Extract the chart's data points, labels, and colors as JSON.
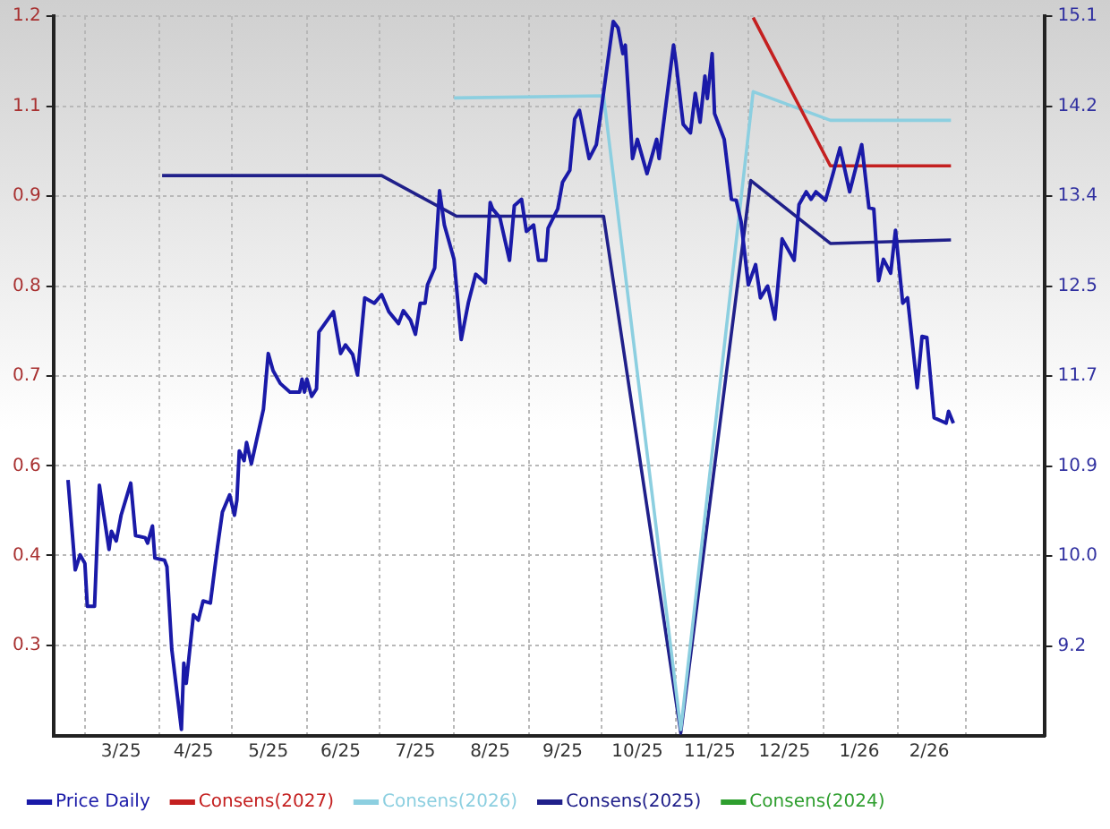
{
  "chart_data": {
    "type": "line",
    "xlim": [
      "2025-02-16",
      "2026-04-03"
    ],
    "xticks": [
      {
        "value": "2025-03-01",
        "label": null
      },
      {
        "value": "2025-03-16",
        "label": "3/25"
      },
      {
        "value": "2025-04-01",
        "label": null
      },
      {
        "value": "2025-04-15",
        "label": "4/25"
      },
      {
        "value": "2025-05-01",
        "label": null
      },
      {
        "value": "2025-05-16",
        "label": "5/25"
      },
      {
        "value": "2025-06-01",
        "label": null
      },
      {
        "value": "2025-06-15",
        "label": "6/25"
      },
      {
        "value": "2025-07-01",
        "label": null
      },
      {
        "value": "2025-07-16",
        "label": "7/25"
      },
      {
        "value": "2025-08-01",
        "label": null
      },
      {
        "value": "2025-08-16",
        "label": "8/25"
      },
      {
        "value": "2025-09-01",
        "label": null
      },
      {
        "value": "2025-09-15",
        "label": "9/25"
      },
      {
        "value": "2025-10-01",
        "label": null
      },
      {
        "value": "2025-10-16",
        "label": "10/25"
      },
      {
        "value": "2025-11-01",
        "label": null
      },
      {
        "value": "2025-11-15",
        "label": "11/25"
      },
      {
        "value": "2025-12-01",
        "label": null
      },
      {
        "value": "2025-12-16",
        "label": "12/25"
      },
      {
        "value": "2026-01-01",
        "label": null
      },
      {
        "value": "2026-01-16",
        "label": "1/26"
      },
      {
        "value": "2026-02-01",
        "label": null
      },
      {
        "value": "2026-02-14",
        "label": "2/26"
      },
      {
        "value": "2026-03-01",
        "label": null
      }
    ],
    "ylim": [
      0.171,
      1.2
    ],
    "yticks": [
      1.2,
      {
        "value": 1.071,
        "label": "1.1"
      },
      {
        "value": 0.943,
        "label": "0.9"
      },
      {
        "value": 0.814,
        "label": "0.8"
      },
      {
        "value": 0.686,
        "label": "0.7"
      },
      {
        "value": 0.557,
        "label": "0.6"
      },
      {
        "value": 0.429,
        "label": "0.4"
      },
      0.3
    ],
    "y2lim": [
      8.33,
      15.05
    ],
    "y2ticks": [
      {
        "value": 15.05,
        "label": "15.1"
      },
      {
        "value": 14.21,
        "label": "14.2"
      },
      {
        "value": 13.37,
        "label": "13.4"
      },
      {
        "value": 12.53,
        "label": "12.5"
      },
      {
        "value": 11.69,
        "label": "11.7"
      },
      {
        "value": 10.85,
        "label": "10.9"
      },
      {
        "value": 10.01,
        "label": "10.0"
      },
      {
        "value": 9.17,
        "label": "9.2"
      }
    ],
    "grid": true,
    "legend": "bottom left",
    "marker": "none",
    "line_style": "solid",
    "series": [
      {
        "name": "Price Daily",
        "color": "#1a1aa8",
        "axis": "y2",
        "x": [
          "2025-02-22",
          "2025-02-25",
          "2025-02-27",
          "2025-03-01",
          "2025-03-02",
          "2025-03-05",
          "2025-03-07",
          "2025-03-11",
          "2025-03-12",
          "2025-03-14",
          "2025-03-16",
          "2025-03-20",
          "2025-03-22",
          "2025-03-26",
          "2025-03-27",
          "2025-03-29",
          "2025-03-30",
          "2025-04-03",
          "2025-04-04",
          "2025-04-06",
          "2025-04-10",
          "2025-04-11",
          "2025-04-12",
          "2025-04-15",
          "2025-04-17",
          "2025-04-19",
          "2025-04-22",
          "2025-04-25",
          "2025-04-27",
          "2025-04-30",
          "2025-05-02",
          "2025-05-03",
          "2025-05-04",
          "2025-05-06",
          "2025-05-07",
          "2025-05-09",
          "2025-05-14",
          "2025-05-16",
          "2025-05-18",
          "2025-05-21",
          "2025-05-25",
          "2025-05-29",
          "2025-05-30",
          "2025-05-31",
          "2025-06-01",
          "2025-06-03",
          "2025-06-05",
          "2025-06-06",
          "2025-06-12",
          "2025-06-15",
          "2025-06-17",
          "2025-06-20",
          "2025-06-22",
          "2025-06-25",
          "2025-06-29",
          "2025-07-02",
          "2025-07-05",
          "2025-07-09",
          "2025-07-11",
          "2025-07-14",
          "2025-07-16",
          "2025-07-18",
          "2025-07-20",
          "2025-07-21",
          "2025-07-24",
          "2025-07-26",
          "2025-07-28",
          "2025-08-01",
          "2025-08-04",
          "2025-08-07",
          "2025-08-10",
          "2025-08-14",
          "2025-08-16",
          "2025-08-17",
          "2025-08-20",
          "2025-08-24",
          "2025-08-26",
          "2025-08-29",
          "2025-08-31",
          "2025-09-03",
          "2025-09-05",
          "2025-09-08",
          "2025-09-09",
          "2025-09-13",
          "2025-09-15",
          "2025-09-18",
          "2025-09-20",
          "2025-09-22",
          "2025-09-26",
          "2025-09-29",
          "2025-10-01",
          "2025-10-06",
          "2025-10-08",
          "2025-10-10",
          "2025-10-11",
          "2025-10-14",
          "2025-10-16",
          "2025-10-20",
          "2025-10-24",
          "2025-10-25",
          "2025-10-31",
          "2025-11-01",
          "2025-11-04",
          "2025-11-07",
          "2025-11-09",
          "2025-11-11",
          "2025-11-13",
          "2025-11-14",
          "2025-11-16",
          "2025-11-17",
          "2025-11-21",
          "2025-11-24",
          "2025-11-26",
          "2025-11-28",
          "2025-12-01",
          "2025-12-04",
          "2025-12-06",
          "2025-12-09",
          "2025-12-12",
          "2025-12-15",
          "2025-12-20",
          "2025-12-22",
          "2025-12-25",
          "2025-12-27",
          "2025-12-29",
          "2026-01-02",
          "2026-01-05",
          "2026-01-08",
          "2026-01-12",
          "2026-01-17",
          "2026-01-20",
          "2026-01-22",
          "2026-01-24",
          "2026-01-26",
          "2026-01-29",
          "2026-01-31",
          "2026-02-03",
          "2026-02-05",
          "2026-02-09",
          "2026-02-11",
          "2026-02-13",
          "2026-02-16",
          "2026-02-19",
          "2026-02-21",
          "2026-02-22",
          "2026-02-24"
        ],
        "values": [
          10.72,
          9.88,
          10.02,
          9.94,
          9.54,
          9.54,
          10.67,
          10.07,
          10.24,
          10.15,
          10.39,
          10.69,
          10.2,
          10.18,
          10.13,
          10.29,
          9.99,
          9.97,
          9.91,
          9.14,
          8.39,
          9.01,
          8.82,
          9.46,
          9.41,
          9.59,
          9.57,
          10.1,
          10.42,
          10.58,
          10.39,
          10.53,
          10.99,
          10.9,
          11.07,
          10.87,
          11.38,
          11.9,
          11.74,
          11.62,
          11.54,
          11.54,
          11.66,
          11.54,
          11.66,
          11.5,
          11.57,
          12.1,
          12.29,
          11.9,
          11.98,
          11.89,
          11.7,
          12.42,
          12.37,
          12.45,
          12.29,
          12.18,
          12.3,
          12.21,
          12.08,
          12.37,
          12.37,
          12.54,
          12.7,
          13.42,
          13.1,
          12.78,
          12.03,
          12.38,
          12.64,
          12.56,
          13.31,
          13.25,
          13.17,
          12.77,
          13.28,
          13.34,
          13.04,
          13.1,
          12.77,
          12.77,
          13.07,
          13.25,
          13.5,
          13.61,
          14.09,
          14.17,
          13.72,
          13.85,
          14.17,
          15.0,
          14.94,
          14.7,
          14.78,
          13.72,
          13.9,
          13.58,
          13.9,
          13.72,
          14.78,
          14.62,
          14.04,
          13.96,
          14.33,
          14.06,
          14.49,
          14.28,
          14.7,
          14.14,
          13.9,
          13.34,
          13.33,
          13.13,
          12.54,
          12.73,
          12.42,
          12.53,
          12.22,
          12.97,
          12.77,
          13.29,
          13.41,
          13.34,
          13.41,
          13.33,
          13.57,
          13.82,
          13.41,
          13.85,
          13.26,
          13.25,
          12.58,
          12.78,
          12.65,
          13.05,
          12.37,
          12.42,
          11.58,
          12.06,
          12.05,
          11.3,
          11.27,
          11.25,
          11.36,
          11.25
        ]
      },
      {
        "name": "Consens(2027)",
        "color": "#c42020",
        "axis": "y",
        "x": [
          "2025-12-03",
          "2026-01-04",
          "2026-02-23"
        ],
        "values": [
          1.198,
          0.986,
          0.986
        ]
      },
      {
        "name": "Consens(2026)",
        "color": "#8ccfe0",
        "axis": "y",
        "x": [
          "2025-08-01",
          "2025-10-02",
          "2025-11-03",
          "2025-12-03",
          "2026-01-04",
          "2026-02-23"
        ],
        "values": [
          1.083,
          1.086,
          0.18,
          1.092,
          1.051,
          1.051
        ]
      },
      {
        "name": "Consens(2025)",
        "color": "#20208a",
        "axis": "y",
        "x": [
          "2025-04-02",
          "2025-07-02",
          "2025-08-02",
          "2025-10-02",
          "2025-11-03",
          "2025-12-02",
          "2026-01-04",
          "2026-02-23"
        ],
        "values": [
          0.972,
          0.972,
          0.914,
          0.914,
          0.175,
          0.965,
          0.875,
          0.88
        ]
      },
      {
        "name": "Consens(2024)",
        "color": "#2e9e2e",
        "axis": "y"
      }
    ]
  }
}
